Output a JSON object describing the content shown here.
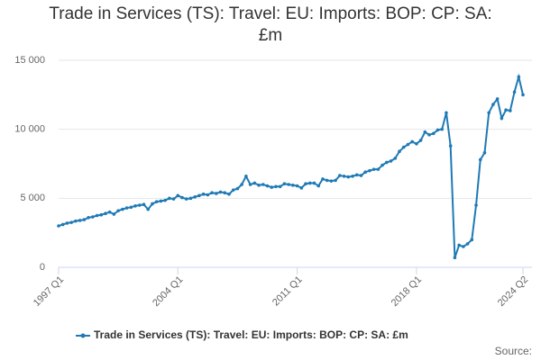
{
  "chart_data": {
    "type": "line",
    "title": "Trade in Services (TS): Travel: EU: Imports: BOP: CP: SA: £m",
    "source": "Source:",
    "categories": [
      "1997 Q1",
      null,
      null,
      null,
      null,
      null,
      null,
      null,
      null,
      null,
      null,
      null,
      null,
      null,
      null,
      null,
      null,
      null,
      null,
      null,
      null,
      null,
      null,
      null,
      null,
      null,
      null,
      null,
      "2004 Q1",
      null,
      null,
      null,
      null,
      null,
      null,
      null,
      null,
      null,
      null,
      null,
      null,
      null,
      null,
      null,
      null,
      null,
      null,
      null,
      null,
      null,
      null,
      null,
      null,
      null,
      null,
      null,
      "2011 Q1",
      null,
      null,
      null,
      null,
      null,
      null,
      null,
      null,
      null,
      null,
      null,
      null,
      null,
      null,
      null,
      null,
      null,
      null,
      null,
      null,
      null,
      null,
      null,
      null,
      null,
      null,
      null,
      "2018 Q1",
      null,
      null,
      null,
      null,
      null,
      null,
      null,
      null,
      null,
      null,
      null,
      null,
      null,
      null,
      null,
      null,
      null,
      null,
      null,
      null,
      null,
      null,
      null,
      null,
      "2024 Q2"
    ],
    "series": [
      {
        "name": "Trade in Services (TS): Travel: EU: Imports: BOP: CP: SA: £m",
        "color": "#1f7ab5",
        "values": [
          3000,
          3100,
          3200,
          3250,
          3350,
          3400,
          3450,
          3600,
          3650,
          3750,
          3800,
          3900,
          4000,
          3850,
          4100,
          4200,
          4300,
          4350,
          4450,
          4500,
          4550,
          4200,
          4600,
          4750,
          4800,
          4850,
          5000,
          4950,
          5200,
          5050,
          4950,
          5000,
          5100,
          5200,
          5300,
          5250,
          5400,
          5350,
          5450,
          5400,
          5300,
          5600,
          5700,
          6000,
          6600,
          6000,
          6100,
          5950,
          6000,
          5900,
          5800,
          5850,
          5850,
          6050,
          6000,
          5950,
          5900,
          5750,
          6050,
          6100,
          6100,
          5900,
          6400,
          6300,
          6250,
          6300,
          6650,
          6600,
          6550,
          6600,
          6700,
          6650,
          6900,
          7000,
          7100,
          7100,
          7400,
          7600,
          7700,
          7900,
          8400,
          8700,
          8900,
          9100,
          8950,
          9200,
          9800,
          9600,
          9700,
          9950,
          10000,
          11200,
          8800,
          700,
          1600,
          1500,
          1700,
          2000,
          4500,
          7800,
          8300,
          11200,
          11800,
          12200,
          10800,
          11400,
          11350,
          12700,
          13800,
          12500
        ]
      }
    ],
    "ylim": [
      0,
      15000
    ],
    "yticks": [
      0,
      {
        "value": 5000,
        "label": "5 000"
      },
      {
        "value": 10000,
        "label": "10 000"
      },
      {
        "value": 15000,
        "label": "15 000"
      }
    ],
    "grid": true
  }
}
